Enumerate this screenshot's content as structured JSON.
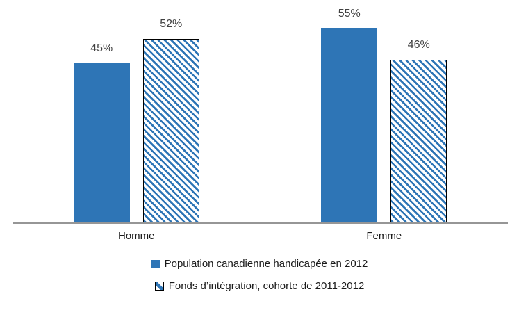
{
  "chart_data": {
    "type": "bar",
    "categories": [
      "Homme",
      "Femme"
    ],
    "series": [
      {
        "name": "Population canadienne handicapée en 2012",
        "values": [
          45,
          55
        ],
        "labels": [
          "45%",
          "55%"
        ],
        "pattern": "solid"
      },
      {
        "name": "Fonds d’intégration, cohorte de 2011-2012",
        "values": [
          52,
          46
        ],
        "labels": [
          "52%",
          "46%"
        ],
        "pattern": "hatch"
      }
    ],
    "title": "",
    "xlabel": "",
    "ylabel": "",
    "ylim": [
      0,
      63
    ],
    "grid": false,
    "y_axis_visible": false,
    "legend_position": "bottom",
    "value_suffix": "%"
  },
  "colors": {
    "bar_blue": "#2E75B6",
    "axis_line": "#969696",
    "data_label": "#404040",
    "category_label": "#1A1A1A",
    "legend_text": "#1A1A1A",
    "hatch_background": "#FFFFFF",
    "hatch_border": "#000000"
  }
}
